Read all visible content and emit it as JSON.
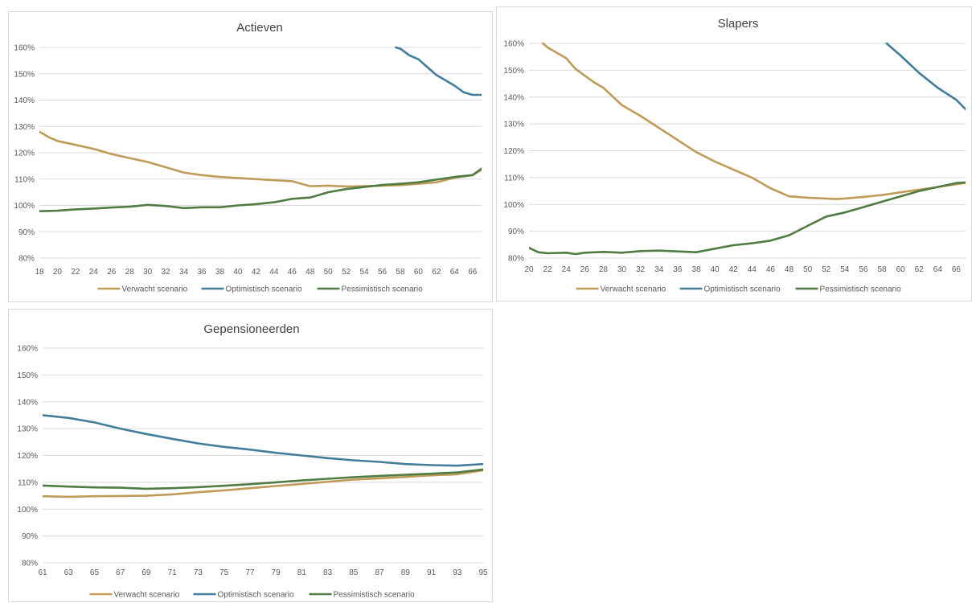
{
  "colors": {
    "verwacht": "#C09A57",
    "optimistisch": "#427E9C",
    "pessimistisch": "#4E7C42"
  },
  "chart_data": [
    {
      "type": "line",
      "title": "Actieven",
      "ylim": [
        0.8,
        1.6
      ],
      "xlim": [
        18,
        67
      ],
      "yticks": [
        "80%",
        "90%",
        "100%",
        "110%",
        "120%",
        "130%",
        "140%",
        "150%",
        "160%"
      ],
      "xticks": [
        "18",
        "20",
        "22",
        "24",
        "26",
        "28",
        "30",
        "32",
        "34",
        "36",
        "38",
        "40",
        "42",
        "44",
        "46",
        "48",
        "50",
        "52",
        "54",
        "56",
        "58",
        "60",
        "62",
        "64",
        "66"
      ],
      "grid": true,
      "legend": "bottom",
      "series": [
        {
          "name": "Verwacht scenario",
          "color_key": "verwacht",
          "x": [
            18,
            19,
            20,
            22,
            24,
            26,
            28,
            30,
            32,
            34,
            36,
            38,
            40,
            42,
            44,
            46,
            48,
            50,
            52,
            54,
            56,
            58,
            60,
            62,
            64,
            66,
            67
          ],
          "y": [
            1.28,
            1.26,
            1.245,
            1.23,
            1.215,
            1.195,
            1.18,
            1.165,
            1.145,
            1.125,
            1.115,
            1.108,
            1.104,
            1.1,
            1.096,
            1.092,
            1.073,
            1.075,
            1.072,
            1.073,
            1.075,
            1.077,
            1.082,
            1.088,
            1.105,
            1.115,
            1.135
          ]
        },
        {
          "name": "Optimistisch scenario",
          "color_key": "optimistisch",
          "x": [
            57.5,
            58,
            59,
            60,
            61,
            62,
            63,
            64,
            65,
            66,
            67
          ],
          "y": [
            1.6,
            1.595,
            1.57,
            1.555,
            1.525,
            1.495,
            1.475,
            1.455,
            1.43,
            1.42,
            1.42
          ]
        },
        {
          "name": "Pessimistisch scenario",
          "color_key": "pessimistisch",
          "x": [
            18,
            20,
            22,
            24,
            26,
            28,
            30,
            32,
            34,
            36,
            38,
            40,
            42,
            44,
            46,
            48,
            50,
            52,
            54,
            56,
            58,
            60,
            62,
            64,
            66,
            67
          ],
          "y": [
            0.978,
            0.98,
            0.985,
            0.988,
            0.992,
            0.995,
            1.002,
            0.998,
            0.99,
            0.993,
            0.993,
            1.0,
            1.005,
            1.012,
            1.025,
            1.03,
            1.05,
            1.062,
            1.07,
            1.078,
            1.082,
            1.088,
            1.098,
            1.108,
            1.115,
            1.14
          ]
        }
      ]
    },
    {
      "type": "line",
      "title": "Slapers",
      "ylim": [
        0.8,
        1.6
      ],
      "xlim": [
        20,
        67
      ],
      "yticks": [
        "80%",
        "90%",
        "100%",
        "110%",
        "120%",
        "130%",
        "140%",
        "150%",
        "160%"
      ],
      "xticks": [
        "20",
        "22",
        "24",
        "26",
        "28",
        "30",
        "32",
        "34",
        "36",
        "38",
        "40",
        "42",
        "44",
        "46",
        "48",
        "50",
        "52",
        "54",
        "56",
        "58",
        "60",
        "62",
        "64",
        "66"
      ],
      "grid": true,
      "legend": "bottom",
      "series": [
        {
          "name": "Verwacht scenario",
          "color_key": "verwacht",
          "x": [
            21.5,
            22,
            24,
            25,
            26,
            27,
            28,
            30,
            32,
            34,
            36,
            38,
            40,
            42,
            44,
            46,
            47,
            48,
            50,
            52,
            53,
            54,
            56,
            58,
            60,
            62,
            64,
            66,
            67
          ],
          "y": [
            1.6,
            1.585,
            1.545,
            1.505,
            1.48,
            1.455,
            1.435,
            1.37,
            1.33,
            1.285,
            1.24,
            1.195,
            1.16,
            1.13,
            1.1,
            1.06,
            1.045,
            1.03,
            1.025,
            1.022,
            1.02,
            1.022,
            1.028,
            1.035,
            1.045,
            1.055,
            1.065,
            1.075,
            1.08
          ]
        },
        {
          "name": "Optimistisch scenario",
          "color_key": "optimistisch",
          "x": [
            58.5,
            59,
            60,
            62,
            64,
            66,
            67
          ],
          "y": [
            1.6,
            1.585,
            1.555,
            1.49,
            1.435,
            1.39,
            1.355
          ]
        },
        {
          "name": "Pessimistisch scenario",
          "color_key": "pessimistisch",
          "x": [
            20,
            21,
            22,
            24,
            25,
            26,
            28,
            30,
            32,
            34,
            36,
            38,
            40,
            42,
            44,
            46,
            48,
            50,
            52,
            54,
            56,
            58,
            60,
            62,
            64,
            66,
            67
          ],
          "y": [
            0.838,
            0.822,
            0.818,
            0.82,
            0.815,
            0.82,
            0.823,
            0.82,
            0.826,
            0.828,
            0.825,
            0.822,
            0.835,
            0.848,
            0.855,
            0.865,
            0.885,
            0.92,
            0.955,
            0.97,
            0.99,
            1.01,
            1.03,
            1.05,
            1.065,
            1.08,
            1.082
          ]
        }
      ]
    },
    {
      "type": "line",
      "title": "Gepensioneerden",
      "ylim": [
        0.8,
        1.6
      ],
      "xlim": [
        61,
        95
      ],
      "yticks": [
        "80%",
        "90%",
        "100%",
        "110%",
        "120%",
        "130%",
        "140%",
        "150%",
        "160%"
      ],
      "xticks": [
        "61",
        "63",
        "65",
        "67",
        "69",
        "71",
        "73",
        "75",
        "77",
        "79",
        "81",
        "83",
        "85",
        "87",
        "89",
        "91",
        "93",
        "95"
      ],
      "grid": true,
      "legend": "bottom",
      "series": [
        {
          "name": "Verwacht scenario",
          "color_key": "verwacht",
          "x": [
            61,
            63,
            65,
            67,
            69,
            71,
            73,
            75,
            77,
            79,
            81,
            83,
            85,
            87,
            89,
            91,
            93,
            95
          ],
          "y": [
            1.048,
            1.046,
            1.048,
            1.049,
            1.05,
            1.055,
            1.063,
            1.07,
            1.078,
            1.086,
            1.094,
            1.102,
            1.11,
            1.115,
            1.12,
            1.126,
            1.13,
            1.145
          ]
        },
        {
          "name": "Optimistisch scenario",
          "color_key": "optimistisch",
          "x": [
            61,
            63,
            65,
            67,
            69,
            71,
            73,
            75,
            77,
            79,
            81,
            83,
            85,
            87,
            89,
            91,
            93,
            95
          ],
          "y": [
            1.35,
            1.34,
            1.323,
            1.3,
            1.28,
            1.262,
            1.245,
            1.232,
            1.222,
            1.21,
            1.2,
            1.19,
            1.182,
            1.176,
            1.168,
            1.164,
            1.162,
            1.168
          ]
        },
        {
          "name": "Pessimistisch scenario",
          "color_key": "pessimistisch",
          "x": [
            61,
            63,
            65,
            67,
            69,
            71,
            73,
            75,
            77,
            79,
            81,
            83,
            85,
            87,
            89,
            91,
            93,
            95
          ],
          "y": [
            1.088,
            1.084,
            1.081,
            1.08,
            1.076,
            1.078,
            1.082,
            1.087,
            1.093,
            1.1,
            1.107,
            1.113,
            1.119,
            1.124,
            1.128,
            1.132,
            1.137,
            1.148
          ]
        }
      ]
    }
  ]
}
